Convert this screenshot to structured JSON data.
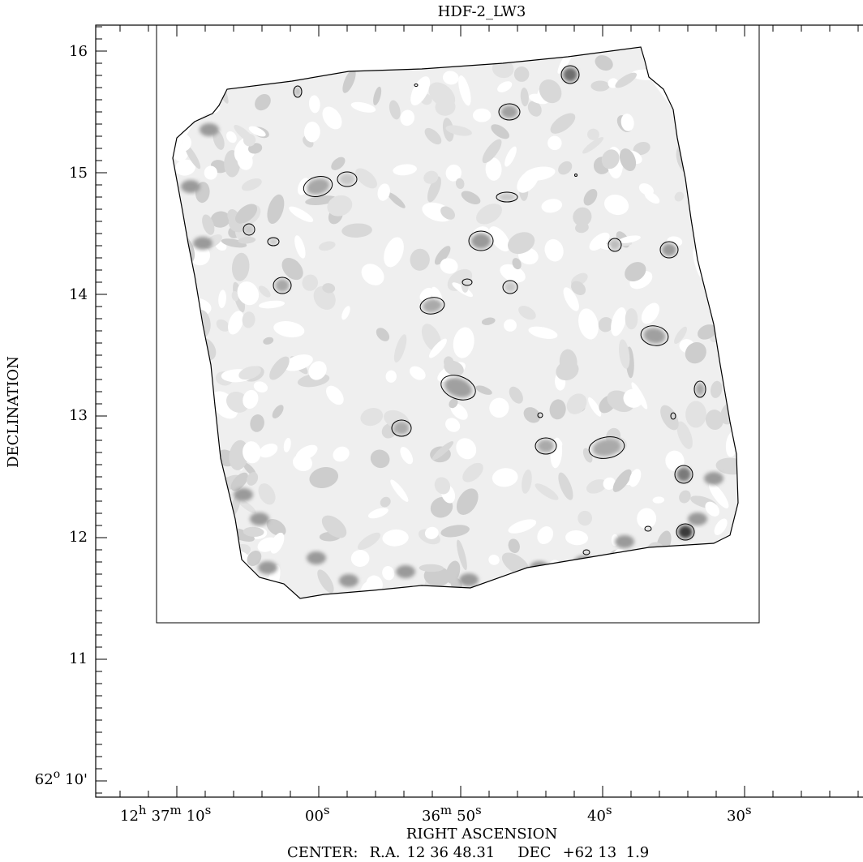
{
  "title": "HDF-2_LW3",
  "ylabel": "DECLINATION",
  "xlabel": "RIGHT ASCENSION",
  "center": {
    "label": "CENTER:",
    "ra_label": "R.A.",
    "ra_value": "12 36 48.31",
    "dec_label": "DEC",
    "dec_value": "+62 13  1.9"
  },
  "yticks": [
    "16",
    "15",
    "14",
    "13",
    "12",
    "11"
  ],
  "ytick_bottom": {
    "deg": "62",
    "deg_sup": "o",
    "min": "10'"
  },
  "xticks": {
    "first": {
      "h": "12",
      "h_sup": "h",
      "m": "37",
      "m_sup": "m",
      "s": "10",
      "s_sup": "s"
    },
    "t2": {
      "v": "00",
      "sup": "s"
    },
    "t3": {
      "m": "36",
      "m_sup": "m",
      "s": "50",
      "s_sup": "s"
    },
    "t4": {
      "v": "40",
      "sup": "s"
    },
    "t5": {
      "v": "30",
      "sup": "s"
    }
  },
  "colors": {
    "background": "#ffffff",
    "field_light": "#ececec",
    "field_mid": "#d6d6d6",
    "field_dark": "#8a8a8a",
    "ink": "#000000"
  }
}
